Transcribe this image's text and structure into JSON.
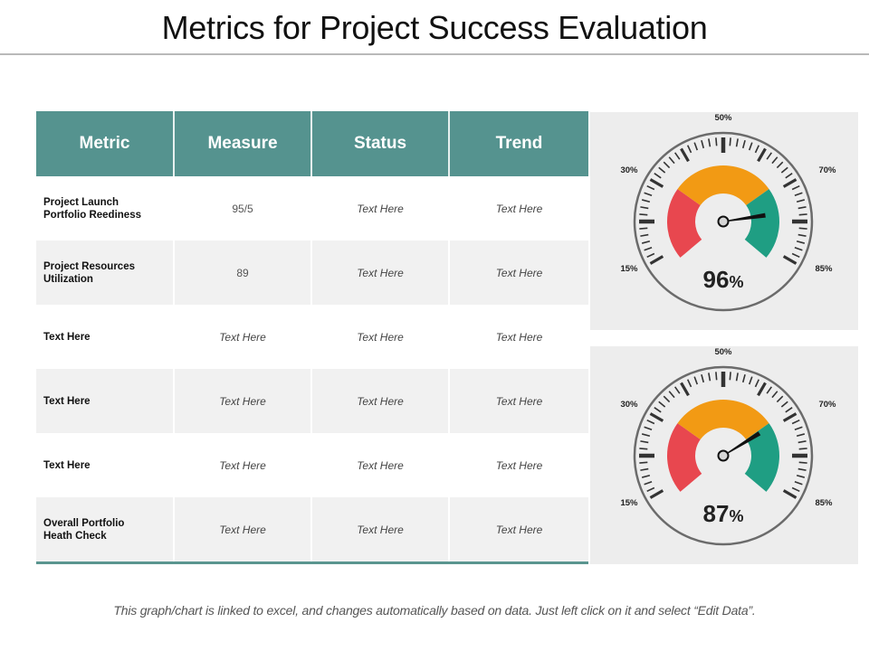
{
  "page": {
    "title": "Metrics for Project Success Evaluation",
    "footnote": "This graph/chart is linked to excel, and changes automatically based on data. Just left click on it and select “Edit Data”."
  },
  "colors": {
    "header_teal": "#55938f",
    "zone_red": "#e8474f",
    "zone_orange": "#f29a14",
    "zone_green": "#1f9e83",
    "panel_bg": "#ededed",
    "dial_ring": "#6b6b6b"
  },
  "table": {
    "headers": [
      "Metric",
      "Measure",
      "Status",
      "Trend"
    ],
    "rows": [
      {
        "metric": "Project Launch\nPortfolio Reediness",
        "measure": "95/5",
        "status": "Text Here",
        "trend": "Text Here"
      },
      {
        "metric": "Project Resources\nUtilization",
        "measure": "89",
        "status": "Text Here",
        "trend": "Text Here"
      },
      {
        "metric": "Text Here",
        "measure": "Text Here",
        "status": "Text Here",
        "trend": "Text Here"
      },
      {
        "metric": "Text Here",
        "measure": "Text Here",
        "status": "Text Here",
        "trend": "Text Here"
      },
      {
        "metric": "Text Here",
        "measure": "Text Here",
        "status": "Text Here",
        "trend": "Text Here"
      },
      {
        "metric": "Overall Portfolio\n Heath Check",
        "measure": "Text Here",
        "status": "Text Here",
        "trend": "Text Here"
      }
    ]
  },
  "chart_data": [
    {
      "type": "gauge",
      "value": 96,
      "value_label": "96",
      "unit": "%",
      "scale_labels": [
        "15%",
        "30%",
        "50%",
        "70%",
        "85%"
      ],
      "zones": [
        {
          "name": "red",
          "from": 0,
          "to": 0.29
        },
        {
          "name": "orange",
          "from": 0.29,
          "to": 0.71
        },
        {
          "name": "green",
          "from": 0.71,
          "to": 1
        }
      ]
    },
    {
      "type": "gauge",
      "value": 87,
      "value_label": "87",
      "unit": "%",
      "scale_labels": [
        "15%",
        "30%",
        "50%",
        "70%",
        "85%"
      ],
      "zones": [
        {
          "name": "red",
          "from": 0,
          "to": 0.29
        },
        {
          "name": "orange",
          "from": 0.29,
          "to": 0.71
        },
        {
          "name": "green",
          "from": 0.71,
          "to": 1
        }
      ]
    }
  ]
}
